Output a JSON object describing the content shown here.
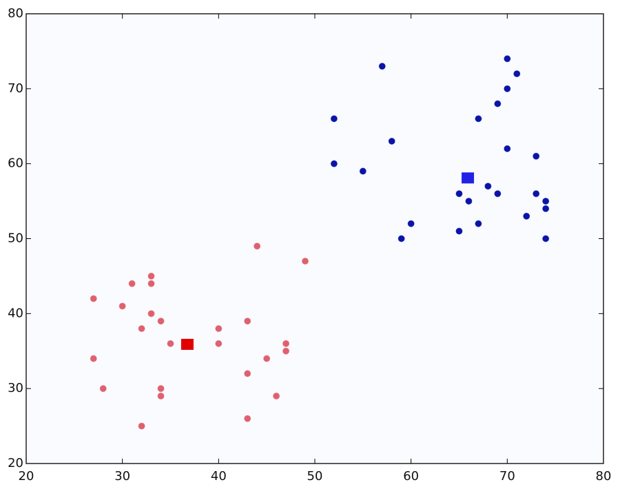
{
  "chart_data": {
    "type": "scatter",
    "xlim": [
      20,
      80
    ],
    "ylim": [
      20,
      80
    ],
    "xticks": [
      20,
      30,
      40,
      50,
      60,
      70,
      80
    ],
    "yticks": [
      20,
      30,
      40,
      50,
      60,
      70,
      80
    ],
    "grid": false,
    "series": [
      {
        "color": "#e0606e",
        "marker": "circle",
        "x": [
          27,
          31,
          33,
          33,
          30,
          33,
          34,
          32,
          35,
          27,
          28,
          34,
          34,
          32,
          40,
          40,
          43,
          45,
          43,
          43,
          46,
          47,
          47,
          44,
          49
        ],
        "y": [
          42,
          44,
          45,
          44,
          41,
          40,
          39,
          38,
          36,
          34,
          30,
          30,
          29,
          25,
          38,
          36,
          39,
          34,
          32,
          26,
          29,
          36,
          35,
          49,
          47
        ]
      },
      {
        "color": "#0a14a8",
        "marker": "circle",
        "x": [
          57,
          70,
          71,
          70,
          69,
          67,
          52,
          58,
          70,
          73,
          52,
          55,
          68,
          65,
          69,
          73,
          66,
          74,
          74,
          72,
          60,
          67,
          65,
          59,
          74
        ],
        "y": [
          73,
          74,
          72,
          70,
          68,
          66,
          66,
          63,
          62,
          61,
          60,
          59,
          57,
          56,
          56,
          56,
          55,
          55,
          54,
          53,
          52,
          52,
          51,
          50,
          50
        ]
      },
      {
        "color": "#e00000",
        "marker": "square",
        "x": [
          36.75
        ],
        "y": [
          35.9
        ]
      },
      {
        "color": "#2222e6",
        "marker": "square",
        "x": [
          65.9
        ],
        "y": [
          58.1
        ]
      }
    ]
  }
}
